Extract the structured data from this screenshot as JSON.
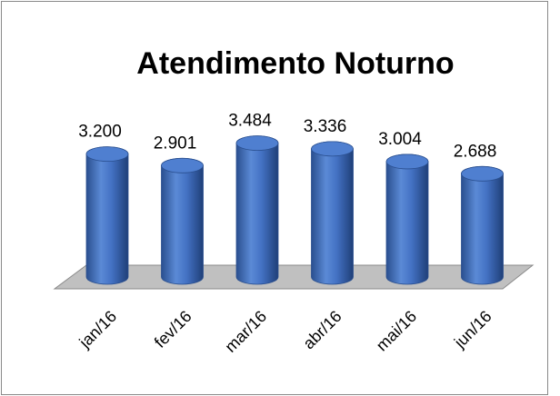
{
  "chart_data": {
    "type": "bar",
    "title": "Atendimento Noturno",
    "categories": [
      "jan/16",
      "fev/16",
      "mar/16",
      "abr/16",
      "mai/16",
      "jun/16"
    ],
    "values": [
      3200,
      2901,
      3484,
      3336,
      3004,
      2688
    ],
    "value_labels": [
      "3.200",
      "2.901",
      "3.484",
      "3.336",
      "3.004",
      "2.688"
    ],
    "color": "#4472c4"
  }
}
